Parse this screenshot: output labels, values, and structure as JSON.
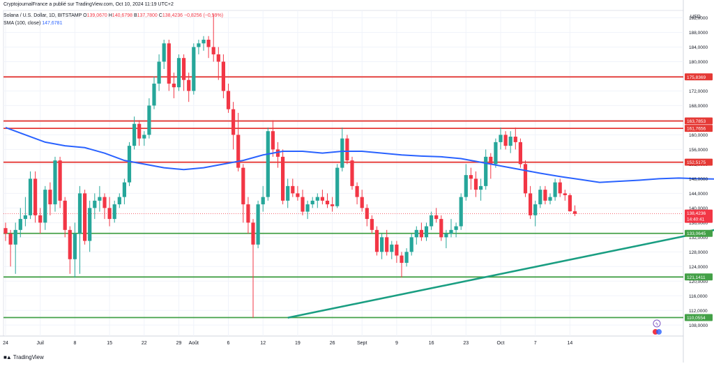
{
  "header": {
    "published": "CryptojournalFrance a publié sur TradingView.com, Oct 10, 2024 11:19 UTC+2",
    "symbol": "Solana / U.S. Dollar, 1D, BITSTAMP",
    "ohlc": {
      "o_label": "O",
      "o": "139,0670",
      "h_label": "H",
      "h": "140,6798",
      "b_label": "B",
      "b": "137,7800",
      "c_label": "C",
      "c": "138,4236",
      "chg": "−0,8256 (−0,59%)"
    },
    "sma_label": "SMA (100, close)",
    "sma_value": "147,6781"
  },
  "footer": {
    "brand": "TradingView"
  },
  "colors": {
    "up": "#26a69a",
    "down": "#f23645",
    "sma": "#2962ff",
    "resistance": "#e53935",
    "support": "#43a047",
    "trendline": "#1a9e82"
  },
  "chart_data": {
    "type": "candlestick",
    "currency": "USD",
    "ylim": [
      105,
      194
    ],
    "y_ticks": [
      "108,0000",
      "112,0000",
      "116,0000",
      "120,0000",
      "124,0000",
      "128,0000",
      "132,0000",
      "136,0000",
      "140,0000",
      "144,0000",
      "148,0000",
      "152,0000",
      "156,0000",
      "160,0000",
      "164,0000",
      "168,0000",
      "172,0000",
      "176,0000",
      "180,0000",
      "184,0000",
      "188,0000",
      "192,0000"
    ],
    "x_labels": [
      {
        "day": 1,
        "label": "24"
      },
      {
        "day": 8,
        "label": "Juil"
      },
      {
        "day": 15,
        "label": "8"
      },
      {
        "day": 22,
        "label": "15"
      },
      {
        "day": 29,
        "label": "22"
      },
      {
        "day": 36,
        "label": "29"
      },
      {
        "day": 39,
        "label": "Août"
      },
      {
        "day": 46,
        "label": "6"
      },
      {
        "day": 53,
        "label": "12"
      },
      {
        "day": 60,
        "label": "19"
      },
      {
        "day": 67,
        "label": "26"
      },
      {
        "day": 73,
        "label": "Sept"
      },
      {
        "day": 80,
        "label": "9"
      },
      {
        "day": 87,
        "label": "16"
      },
      {
        "day": 94,
        "label": "23"
      },
      {
        "day": 101,
        "label": "Oct"
      },
      {
        "day": 108,
        "label": "7"
      },
      {
        "day": 115,
        "label": "14"
      }
    ],
    "candles": [
      {
        "o": 134.5,
        "h": 136.0,
        "l": 131.0,
        "c": 133.0
      },
      {
        "o": 133.0,
        "h": 134.0,
        "l": 124.0,
        "c": 130.0
      },
      {
        "o": 130.0,
        "h": 136.0,
        "l": 122.0,
        "c": 134.0
      },
      {
        "o": 134.0,
        "h": 140.0,
        "l": 132.0,
        "c": 137.0
      },
      {
        "o": 137.0,
        "h": 143.0,
        "l": 135.0,
        "c": 138.0
      },
      {
        "o": 138.0,
        "h": 150.0,
        "l": 137.0,
        "c": 148.0
      },
      {
        "o": 148.0,
        "h": 150.0,
        "l": 136.0,
        "c": 138.0
      },
      {
        "o": 138.0,
        "h": 140.0,
        "l": 133.0,
        "c": 136.0
      },
      {
        "o": 136.0,
        "h": 146.0,
        "l": 134.0,
        "c": 145.0
      },
      {
        "o": 145.0,
        "h": 147.0,
        "l": 138.0,
        "c": 141.0
      },
      {
        "o": 141.0,
        "h": 154.0,
        "l": 139.0,
        "c": 153.0
      },
      {
        "o": 153.0,
        "h": 154.0,
        "l": 140.0,
        "c": 142.0
      },
      {
        "o": 142.0,
        "h": 143.0,
        "l": 132.0,
        "c": 134.0
      },
      {
        "o": 134.0,
        "h": 135.0,
        "l": 122.0,
        "c": 126.0
      },
      {
        "o": 126.0,
        "h": 136.0,
        "l": 121.0,
        "c": 133.0
      },
      {
        "o": 133.0,
        "h": 146.0,
        "l": 122.0,
        "c": 144.0
      },
      {
        "o": 144.0,
        "h": 145.0,
        "l": 130.0,
        "c": 131.0
      },
      {
        "o": 131.0,
        "h": 142.0,
        "l": 128.0,
        "c": 140.0
      },
      {
        "o": 140.0,
        "h": 144.0,
        "l": 137.0,
        "c": 142.0
      },
      {
        "o": 142.0,
        "h": 146.0,
        "l": 139.0,
        "c": 143.0
      },
      {
        "o": 143.0,
        "h": 144.0,
        "l": 137.0,
        "c": 140.0
      },
      {
        "o": 140.0,
        "h": 143.0,
        "l": 135.0,
        "c": 137.0
      },
      {
        "o": 137.0,
        "h": 142.0,
        "l": 136.0,
        "c": 141.0
      },
      {
        "o": 141.0,
        "h": 144.0,
        "l": 140.0,
        "c": 143.0
      },
      {
        "o": 143.0,
        "h": 148.0,
        "l": 141.0,
        "c": 147.0
      },
      {
        "o": 147.0,
        "h": 158.0,
        "l": 146.0,
        "c": 157.0
      },
      {
        "o": 157.0,
        "h": 165.0,
        "l": 156.0,
        "c": 163.0
      },
      {
        "o": 163.0,
        "h": 164.0,
        "l": 157.0,
        "c": 159.0
      },
      {
        "o": 159.0,
        "h": 161.0,
        "l": 157.0,
        "c": 160.0
      },
      {
        "o": 160.0,
        "h": 170.0,
        "l": 159.0,
        "c": 168.0
      },
      {
        "o": 168.0,
        "h": 176.0,
        "l": 167.0,
        "c": 174.0
      },
      {
        "o": 174.0,
        "h": 182.0,
        "l": 172.0,
        "c": 180.0
      },
      {
        "o": 180.0,
        "h": 186.0,
        "l": 178.0,
        "c": 185.0
      },
      {
        "o": 185.0,
        "h": 186.0,
        "l": 172.0,
        "c": 174.0
      },
      {
        "o": 174.0,
        "h": 177.0,
        "l": 170.0,
        "c": 173.0
      },
      {
        "o": 173.0,
        "h": 182.0,
        "l": 172.0,
        "c": 181.0
      },
      {
        "o": 181.0,
        "h": 182.0,
        "l": 172.0,
        "c": 175.0
      },
      {
        "o": 175.0,
        "h": 177.0,
        "l": 169.0,
        "c": 172.0
      },
      {
        "o": 172.0,
        "h": 185.0,
        "l": 171.0,
        "c": 184.0
      },
      {
        "o": 184.0,
        "h": 186.0,
        "l": 182.0,
        "c": 185.0
      },
      {
        "o": 185.0,
        "h": 187.0,
        "l": 183.0,
        "c": 186.0
      },
      {
        "o": 186.0,
        "h": 187.0,
        "l": 181.0,
        "c": 184.0
      },
      {
        "o": 184.0,
        "h": 193.0,
        "l": 180.0,
        "c": 182.0
      },
      {
        "o": 182.0,
        "h": 184.0,
        "l": 175.0,
        "c": 180.0
      },
      {
        "o": 180.0,
        "h": 182.0,
        "l": 170.0,
        "c": 172.0
      },
      {
        "o": 172.0,
        "h": 174.0,
        "l": 166.0,
        "c": 167.0
      },
      {
        "o": 167.0,
        "h": 169.0,
        "l": 156.0,
        "c": 160.0
      },
      {
        "o": 160.0,
        "h": 166.0,
        "l": 150.0,
        "c": 151.0
      },
      {
        "o": 151.0,
        "h": 152.0,
        "l": 136.0,
        "c": 141.0
      },
      {
        "o": 141.0,
        "h": 143.0,
        "l": 133.0,
        "c": 136.0
      },
      {
        "o": 136.0,
        "h": 137.0,
        "l": 110.0,
        "c": 130.0
      },
      {
        "o": 130.0,
        "h": 142.0,
        "l": 129.0,
        "c": 141.0
      },
      {
        "o": 141.0,
        "h": 146.0,
        "l": 139.0,
        "c": 143.0
      },
      {
        "o": 143.0,
        "h": 162.0,
        "l": 142.0,
        "c": 161.0
      },
      {
        "o": 161.0,
        "h": 164.0,
        "l": 154.0,
        "c": 156.0
      },
      {
        "o": 156.0,
        "h": 158.0,
        "l": 151.0,
        "c": 154.0
      },
      {
        "o": 154.0,
        "h": 156.0,
        "l": 141.0,
        "c": 142.0
      },
      {
        "o": 142.0,
        "h": 148.0,
        "l": 140.0,
        "c": 146.0
      },
      {
        "o": 146.0,
        "h": 148.0,
        "l": 143.0,
        "c": 144.0
      },
      {
        "o": 144.0,
        "h": 146.0,
        "l": 142.0,
        "c": 143.0
      },
      {
        "o": 143.0,
        "h": 145.0,
        "l": 138.0,
        "c": 139.0
      },
      {
        "o": 139.0,
        "h": 142.0,
        "l": 137.0,
        "c": 141.0
      },
      {
        "o": 141.0,
        "h": 143.0,
        "l": 140.0,
        "c": 142.0
      },
      {
        "o": 142.0,
        "h": 144.0,
        "l": 140.0,
        "c": 143.0
      },
      {
        "o": 143.0,
        "h": 145.0,
        "l": 141.0,
        "c": 142.0
      },
      {
        "o": 142.0,
        "h": 144.0,
        "l": 140.0,
        "c": 141.0
      },
      {
        "o": 141.0,
        "h": 143.0,
        "l": 139.0,
        "c": 140.5
      },
      {
        "o": 140.5,
        "h": 152.0,
        "l": 140.0,
        "c": 151.0
      },
      {
        "o": 151.0,
        "h": 162.0,
        "l": 150.0,
        "c": 159.0
      },
      {
        "o": 159.0,
        "h": 160.0,
        "l": 152.0,
        "c": 153.0
      },
      {
        "o": 153.0,
        "h": 154.0,
        "l": 145.0,
        "c": 146.0
      },
      {
        "o": 146.0,
        "h": 147.0,
        "l": 141.0,
        "c": 143.0
      },
      {
        "o": 143.0,
        "h": 145.0,
        "l": 139.0,
        "c": 140.0
      },
      {
        "o": 140.0,
        "h": 141.0,
        "l": 135.0,
        "c": 137.0
      },
      {
        "o": 137.0,
        "h": 138.0,
        "l": 133.0,
        "c": 134.0
      },
      {
        "o": 134.0,
        "h": 135.0,
        "l": 127.0,
        "c": 128.0
      },
      {
        "o": 128.0,
        "h": 133.0,
        "l": 126.0,
        "c": 132.0
      },
      {
        "o": 132.0,
        "h": 134.0,
        "l": 127.0,
        "c": 128.0
      },
      {
        "o": 128.0,
        "h": 131.0,
        "l": 126.0,
        "c": 130.0
      },
      {
        "o": 130.0,
        "h": 131.0,
        "l": 125.0,
        "c": 127.0
      },
      {
        "o": 127.0,
        "h": 128.0,
        "l": 121.0,
        "c": 125.0
      },
      {
        "o": 125.0,
        "h": 129.0,
        "l": 124.0,
        "c": 128.0
      },
      {
        "o": 128.0,
        "h": 133.0,
        "l": 127.0,
        "c": 132.0
      },
      {
        "o": 132.0,
        "h": 135.0,
        "l": 130.0,
        "c": 134.0
      },
      {
        "o": 134.0,
        "h": 136.0,
        "l": 131.0,
        "c": 132.0
      },
      {
        "o": 132.0,
        "h": 136.0,
        "l": 131.0,
        "c": 135.0
      },
      {
        "o": 135.0,
        "h": 139.0,
        "l": 134.0,
        "c": 138.0
      },
      {
        "o": 138.0,
        "h": 140.0,
        "l": 136.0,
        "c": 137.0
      },
      {
        "o": 137.0,
        "h": 138.0,
        "l": 131.0,
        "c": 132.0
      },
      {
        "o": 132.0,
        "h": 134.0,
        "l": 129.0,
        "c": 133.0
      },
      {
        "o": 133.0,
        "h": 137.0,
        "l": 132.0,
        "c": 134.0
      },
      {
        "o": 134.0,
        "h": 136.0,
        "l": 132.0,
        "c": 135.0
      },
      {
        "o": 135.0,
        "h": 144.0,
        "l": 134.0,
        "c": 143.0
      },
      {
        "o": 143.0,
        "h": 152.0,
        "l": 142.0,
        "c": 149.0
      },
      {
        "o": 149.0,
        "h": 151.0,
        "l": 145.0,
        "c": 148.0
      },
      {
        "o": 148.0,
        "h": 150.0,
        "l": 143.0,
        "c": 145.0
      },
      {
        "o": 145.0,
        "h": 148.0,
        "l": 142.0,
        "c": 146.0
      },
      {
        "o": 146.0,
        "h": 156.0,
        "l": 145.0,
        "c": 154.0
      },
      {
        "o": 154.0,
        "h": 155.0,
        "l": 148.0,
        "c": 152.0
      },
      {
        "o": 152.0,
        "h": 159.0,
        "l": 151.0,
        "c": 158.0
      },
      {
        "o": 158.0,
        "h": 162.0,
        "l": 156.0,
        "c": 160.0
      },
      {
        "o": 160.0,
        "h": 161.0,
        "l": 156.0,
        "c": 157.0
      },
      {
        "o": 157.0,
        "h": 161.0,
        "l": 155.0,
        "c": 159.5
      },
      {
        "o": 159.5,
        "h": 162.0,
        "l": 156.0,
        "c": 158.0
      },
      {
        "o": 158.0,
        "h": 159.0,
        "l": 151.0,
        "c": 152.0
      },
      {
        "o": 152.0,
        "h": 153.0,
        "l": 143.0,
        "c": 144.0
      },
      {
        "o": 144.0,
        "h": 146.0,
        "l": 137.0,
        "c": 138.0
      },
      {
        "o": 138.0,
        "h": 142.0,
        "l": 135.0,
        "c": 141.0
      },
      {
        "o": 141.0,
        "h": 146.0,
        "l": 140.0,
        "c": 145.0
      },
      {
        "o": 145.0,
        "h": 146.0,
        "l": 141.0,
        "c": 142.0
      },
      {
        "o": 142.0,
        "h": 144.0,
        "l": 141.0,
        "c": 143.0
      },
      {
        "o": 143.0,
        "h": 148.0,
        "l": 142.0,
        "c": 147.0
      },
      {
        "o": 147.0,
        "h": 148.0,
        "l": 143.0,
        "c": 144.0
      },
      {
        "o": 144.0,
        "h": 145.0,
        "l": 142.0,
        "c": 143.5
      },
      {
        "o": 143.5,
        "h": 144.0,
        "l": 139.0,
        "c": 139.1
      },
      {
        "o": 139.1,
        "h": 140.7,
        "l": 137.8,
        "c": 138.4
      }
    ],
    "sma": [
      [
        0,
        162.0
      ],
      [
        4,
        160.0
      ],
      [
        8,
        158.0
      ],
      [
        12,
        157.0
      ],
      [
        16,
        156.5
      ],
      [
        20,
        155.0
      ],
      [
        24,
        153.0
      ],
      [
        28,
        152.0
      ],
      [
        32,
        151.0
      ],
      [
        36,
        150.5
      ],
      [
        40,
        151.0
      ],
      [
        44,
        152.0
      ],
      [
        48,
        153.0
      ],
      [
        52,
        154.5
      ],
      [
        56,
        155.5
      ],
      [
        60,
        155.5
      ],
      [
        64,
        155.0
      ],
      [
        68,
        155.5
      ],
      [
        72,
        155.5
      ],
      [
        76,
        155.0
      ],
      [
        80,
        154.5
      ],
      [
        84,
        154.2
      ],
      [
        88,
        154.0
      ],
      [
        92,
        153.5
      ],
      [
        96,
        152.5
      ],
      [
        100,
        151.5
      ],
      [
        104,
        150.5
      ],
      [
        108,
        149.5
      ],
      [
        112,
        148.6
      ],
      [
        116,
        147.8
      ],
      [
        120,
        147.0
      ],
      [
        124,
        147.3
      ],
      [
        128,
        147.6
      ],
      [
        132,
        148.0
      ],
      [
        136,
        148.2
      ],
      [
        140,
        148.0
      ],
      [
        144,
        147.9
      ],
      [
        148,
        147.7
      ]
    ],
    "levels": [
      {
        "value": 175.8369,
        "label": "175,8369",
        "kind": "resistance"
      },
      {
        "value": 163.7853,
        "label": "163,7853",
        "kind": "resistance"
      },
      {
        "value": 161.7656,
        "label": "161,7656",
        "kind": "resistance"
      },
      {
        "value": 152.5175,
        "label": "152,5175",
        "kind": "resistance"
      },
      {
        "value": 133.0645,
        "label": "133,0645",
        "kind": "support"
      },
      {
        "value": 121.1411,
        "label": "121,1411",
        "kind": "support"
      },
      {
        "value": 110.0554,
        "label": "110,0554",
        "kind": "support"
      }
    ],
    "price_tag": {
      "value": 138.4236,
      "label": "138,4236",
      "countdown": "14:40:41"
    },
    "trendline": {
      "from": {
        "day": 58,
        "value": 110.0
      },
      "to": {
        "day": 155,
        "value": 137.0
      }
    }
  }
}
